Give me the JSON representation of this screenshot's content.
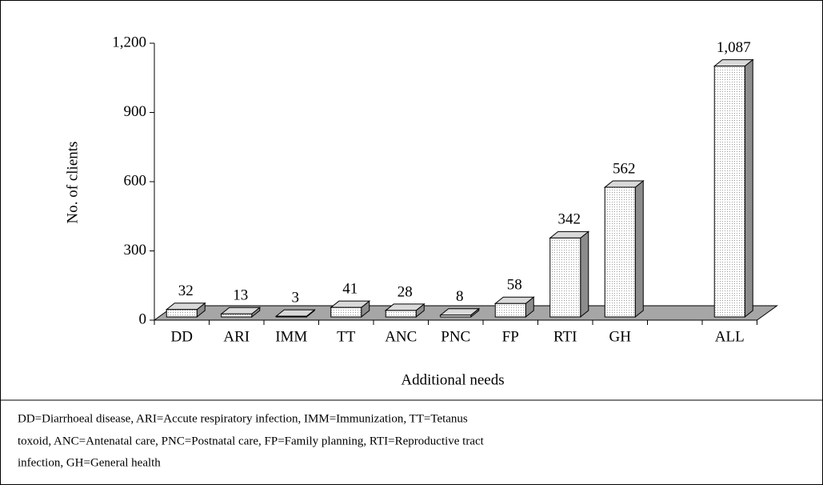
{
  "chart_data": {
    "type": "bar3d",
    "categories": [
      "DD",
      "ARI",
      "IMM",
      "TT",
      "ANC",
      "PNC",
      "FP",
      "RTI",
      "GH",
      null,
      "ALL"
    ],
    "values": [
      32,
      13,
      3,
      41,
      28,
      8,
      58,
      342,
      562,
      null,
      1087
    ],
    "value_labels": [
      "32",
      "13",
      "3",
      "41",
      "28",
      "8",
      "58",
      "342",
      "562",
      null,
      "1,087"
    ],
    "ylabel": "No. of clients",
    "xlabel": "Additional needs",
    "ylim": [
      0,
      1200
    ],
    "yticks": [
      0,
      300,
      600,
      900,
      {
        "value": 1200,
        "label": "1,200"
      }
    ],
    "color": "#ffffff",
    "side_color": "#8c8c8c",
    "floor_color": "#a6a6a6",
    "note": [
      "DD=Diarrhoeal disease, ARI=Accute respiratory infection, IMM=Immunization, TT=Tetanus",
      "toxoid, ANC=Antenatal care, PNC=Postnatal care, FP=Family planning, RTI=Reproductive tract",
      "infection, GH=General health"
    ]
  }
}
